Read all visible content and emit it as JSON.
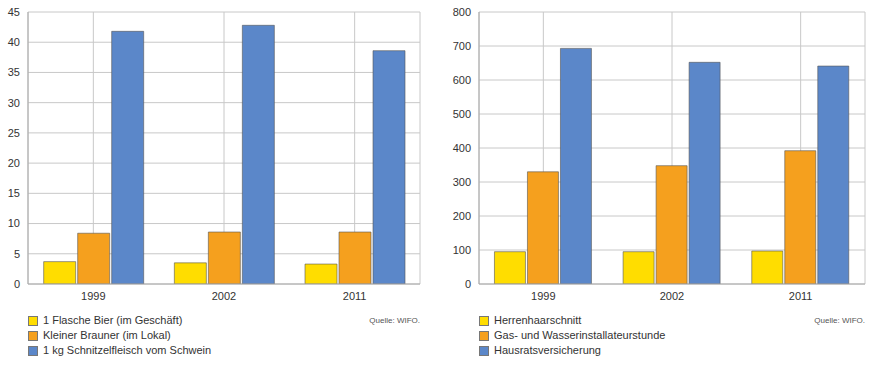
{
  "chart_data": [
    {
      "type": "bar",
      "categories": [
        "1999",
        "2002",
        "2011"
      ],
      "ylim": [
        0,
        45
      ],
      "yticks": [
        0,
        5,
        10,
        15,
        20,
        25,
        30,
        35,
        40,
        45
      ],
      "grid": true,
      "legend": "bottom",
      "annotation": "Quelle: WIFO.",
      "series": [
        {
          "name": "1 Flasche Bier (im Geschäft)",
          "color": "#ffdd00",
          "values": [
            3.7,
            3.5,
            3.3
          ]
        },
        {
          "name": "Kleiner Brauner (im Lokal)",
          "color": "#f5a01e",
          "values": [
            8.4,
            8.6,
            8.6
          ]
        },
        {
          "name": "1 kg Schnitzelfleisch vom Schwein",
          "color": "#5b87c9",
          "values": [
            41.8,
            42.8,
            38.6
          ]
        }
      ]
    },
    {
      "type": "bar",
      "categories": [
        "1999",
        "2002",
        "2011"
      ],
      "ylim": [
        0,
        800
      ],
      "yticks": [
        0,
        100,
        200,
        300,
        400,
        500,
        600,
        700,
        800
      ],
      "grid": true,
      "legend": "bottom",
      "annotation": "Quelle: WIFO.",
      "series": [
        {
          "name": "Herrenhaarschnitt",
          "color": "#ffdd00",
          "values": [
            95,
            95,
            97
          ]
        },
        {
          "name": "Gas- und Wasserinstallateurstunde",
          "color": "#f5a01e",
          "values": [
            330,
            348,
            392
          ]
        },
        {
          "name": "Hausratsversicherung",
          "color": "#5b87c9",
          "values": [
            693,
            652,
            641
          ]
        }
      ]
    }
  ]
}
